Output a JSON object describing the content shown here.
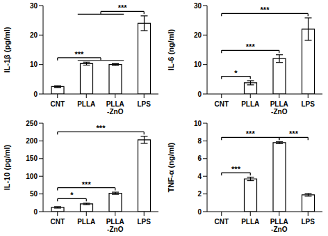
{
  "chart_data": [
    {
      "type": "bar",
      "y_label": "IL-1β (pg/ml)",
      "categories": [
        "CNT",
        "PLLA",
        "PLLA-ZnO",
        "LPS"
      ],
      "values": [
        2.5,
        10.3,
        10,
        24
      ],
      "errors": [
        0.3,
        0.5,
        0.3,
        2.5
      ],
      "color": "#ffffff",
      "ylim": [
        0,
        30
      ],
      "yticks": [
        0,
        10,
        20,
        30
      ],
      "annotations": [
        {
          "from": [
            "CNT"
          ],
          "to": [
            "PLLA",
            "PLLA-ZnO"
          ],
          "text": "***"
        },
        {
          "from": [
            "PLLA",
            "PLLA-ZnO"
          ],
          "to": [
            "LPS"
          ],
          "text": "***"
        }
      ]
    },
    {
      "type": "bar",
      "y_label": "IL-6 (ng/ml)",
      "categories": [
        "CNT",
        "PLLA",
        "PLLA-ZnO",
        "LPS"
      ],
      "values": [
        0,
        3.8,
        12,
        22
      ],
      "errors": [
        0,
        0.7,
        1.3,
        3.8
      ],
      "color": "#ffffff",
      "ylim": [
        0,
        30
      ],
      "yticks": [
        0,
        10,
        20,
        30
      ],
      "annotations": [
        {
          "from": [
            "CNT"
          ],
          "to": [
            "PLLA"
          ],
          "text": "*"
        },
        {
          "from": [
            "CNT"
          ],
          "to": [
            "PLLA-ZnO"
          ],
          "text": "***"
        },
        {
          "from": [
            "CNT"
          ],
          "to": [
            "LPS"
          ],
          "text": "***"
        }
      ]
    },
    {
      "type": "bar",
      "y_label": "IL-10 (pg/ml)",
      "categories": [
        "CNT",
        "PLLA",
        "PLLA-ZnO",
        "LPS"
      ],
      "values": [
        12,
        22,
        52,
        203
      ],
      "errors": [
        2,
        2,
        3,
        10
      ],
      "color": "#ffffff",
      "ylim": [
        0,
        250
      ],
      "yticks": [
        0,
        50,
        100,
        150,
        200,
        250
      ],
      "annotations": [
        {
          "from": [
            "CNT"
          ],
          "to": [
            "PLLA"
          ],
          "text": "*"
        },
        {
          "from": [
            "CNT"
          ],
          "to": [
            "PLLA-ZnO"
          ],
          "text": "***"
        },
        {
          "from": [
            "CNT"
          ],
          "to": [
            "LPS"
          ],
          "text": "***"
        }
      ]
    },
    {
      "type": "bar",
      "y_label": "TNF-α (ng/ml)",
      "categories": [
        "CNT",
        "PLLA",
        "PLLA-ZnO",
        "LPS"
      ],
      "values": [
        0,
        3.7,
        7.8,
        1.9
      ],
      "errors": [
        0,
        0.2,
        0.1,
        0.15
      ],
      "color": "#ffffff",
      "ylim": [
        0,
        10
      ],
      "yticks": [
        0,
        2,
        4,
        6,
        8,
        10
      ],
      "annotations": [
        {
          "from": [
            "CNT"
          ],
          "to": [
            "PLLA"
          ],
          "text": "***"
        },
        {
          "from": [
            "CNT"
          ],
          "to": [
            "PLLA-ZnO"
          ],
          "text": "***"
        },
        {
          "from": [
            "PLLA-ZnO"
          ],
          "to": [
            "LPS"
          ],
          "text": "***"
        }
      ]
    }
  ]
}
